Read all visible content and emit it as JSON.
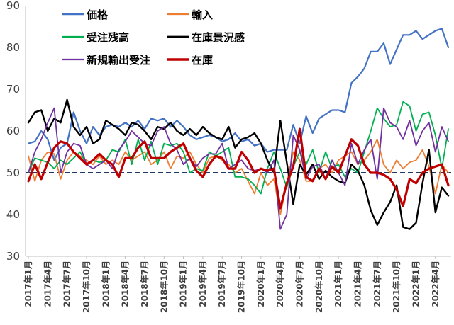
{
  "chart_data": {
    "type": "line",
    "title": "",
    "xlabel": "",
    "ylabel": "",
    "ylim": [
      30,
      90
    ],
    "yticks": [
      30,
      40,
      50,
      60,
      70,
      80,
      90
    ],
    "grid": false,
    "legend_position": "top-left",
    "x_tick_labels": [
      "2017年1月",
      "2017年4月",
      "2017年7月",
      "2017年10月",
      "2018年1月",
      "2018年4月",
      "2018年7月",
      "2018年10月",
      "2019年1月",
      "2019年4月",
      "2019年7月",
      "2019年10月",
      "2020年1月",
      "2020年4月",
      "2020年7月",
      "2020年10月",
      "2021年1月",
      "2021年4月",
      "2021年7月",
      "2021年10月",
      "2022年1月",
      "2022年4月"
    ],
    "reference_line": {
      "value": 50,
      "style": "dashed",
      "color": "#1f3864"
    },
    "x": [
      "2017-01",
      "2017-02",
      "2017-03",
      "2017-04",
      "2017-05",
      "2017-06",
      "2017-07",
      "2017-08",
      "2017-09",
      "2017-10",
      "2017-11",
      "2017-12",
      "2018-01",
      "2018-02",
      "2018-03",
      "2018-04",
      "2018-05",
      "2018-06",
      "2018-07",
      "2018-08",
      "2018-09",
      "2018-10",
      "2018-11",
      "2018-12",
      "2019-01",
      "2019-02",
      "2019-03",
      "2019-04",
      "2019-05",
      "2019-06",
      "2019-07",
      "2019-08",
      "2019-09",
      "2019-10",
      "2019-11",
      "2019-12",
      "2020-01",
      "2020-02",
      "2020-03",
      "2020-04",
      "2020-05",
      "2020-06",
      "2020-07",
      "2020-08",
      "2020-09",
      "2020-10",
      "2020-11",
      "2020-12",
      "2021-01",
      "2021-02",
      "2021-03",
      "2021-04",
      "2021-05",
      "2021-06",
      "2021-07",
      "2021-08",
      "2021-09",
      "2021-10",
      "2021-11",
      "2021-12",
      "2022-01",
      "2022-02",
      "2022-03",
      "2022-04",
      "2022-05",
      "2022-06"
    ],
    "series": [
      {
        "name": "価格",
        "color": "#4472c4",
        "width": 2.2,
        "values": [
          57,
          57.5,
          60,
          58,
          53,
          56,
          57,
          64.5,
          60,
          57,
          61,
          59,
          61,
          61.5,
          61,
          62,
          61,
          62.5,
          60.5,
          63,
          62.5,
          63,
          61,
          62.5,
          61,
          59,
          58,
          58.5,
          59,
          58.5,
          57.5,
          58,
          59.5,
          57.5,
          58,
          56.5,
          57,
          55,
          55.5,
          55.5,
          55.5,
          61.5,
          57,
          63.5,
          59.5,
          63,
          64,
          65,
          65,
          64.5,
          71.5,
          73,
          75,
          79,
          79,
          81,
          76,
          79.5,
          83,
          83,
          84,
          82,
          83,
          84,
          84.5,
          80
        ]
      },
      {
        "name": "輸入",
        "color": "#ed7d31",
        "width": 1.8,
        "values": [
          54,
          48,
          53,
          55,
          54.5,
          48.5,
          53,
          55,
          54,
          53,
          52,
          54,
          52,
          53,
          52,
          55,
          53,
          54,
          55,
          52,
          53,
          55,
          51,
          54,
          53.5,
          55,
          52,
          50,
          53.5,
          54,
          53,
          52,
          50,
          51,
          48,
          45,
          50,
          47,
          48.5,
          40,
          47.5,
          55,
          53,
          48,
          48,
          51,
          52,
          50,
          53,
          54,
          55,
          52,
          53,
          55,
          58,
          52,
          50,
          53,
          51,
          52.5,
          53,
          55.5,
          51.5,
          45,
          52,
          50
        ]
      },
      {
        "name": "受注残高",
        "color": "#00b050",
        "width": 1.8,
        "values": [
          50,
          53.5,
          53,
          52.5,
          51,
          53,
          52,
          53.5,
          55,
          52,
          53,
          52.5,
          53,
          55.5,
          55,
          58,
          52,
          58,
          53,
          57.5,
          52,
          57,
          56.5,
          57,
          55,
          50,
          51,
          50.5,
          55,
          54,
          55,
          56,
          49,
          49,
          48.5,
          47,
          45,
          51,
          55,
          51,
          46.5,
          51.5,
          55,
          52,
          55.5,
          50,
          55,
          51,
          52,
          49,
          51,
          50,
          55,
          60,
          65.5,
          63,
          61,
          61.5,
          67,
          66,
          60,
          64,
          64.5,
          59,
          51,
          60.5
        ]
      },
      {
        "name": "在庫景況感",
        "color": "#000000",
        "width": 2.4,
        "values": [
          62,
          64.5,
          65,
          60,
          63,
          62,
          67.5,
          61,
          59,
          61,
          57,
          58,
          62.5,
          61.5,
          60.5,
          59,
          62,
          61.5,
          60,
          58,
          61,
          60.5,
          62,
          60,
          59,
          60.5,
          59,
          61,
          59.5,
          58.5,
          58,
          61,
          56,
          58,
          58.5,
          59.5,
          57,
          53,
          50,
          62.5,
          52.5,
          42.5,
          52,
          49.5,
          52,
          48.5,
          50.5,
          49,
          48,
          47.5,
          52,
          50.5,
          47,
          41,
          37.5,
          40.5,
          43,
          47,
          37,
          36.5,
          38,
          47.5,
          55.5,
          40.5,
          46.5,
          44.5
        ]
      },
      {
        "name": "新規輸出受注",
        "color": "#7030a0",
        "width": 1.8,
        "values": [
          50,
          55,
          58,
          62,
          65.5,
          50,
          55,
          57,
          56.5,
          52,
          51,
          52,
          53,
          51,
          55.5,
          57.5,
          60,
          58.5,
          57,
          56.5,
          60,
          61,
          57,
          55.5,
          52,
          53.5,
          51.5,
          53.5,
          54.5,
          54.5,
          57,
          51,
          52,
          53,
          51,
          50.5,
          51,
          50,
          53,
          36.5,
          40,
          59,
          55.5,
          48.5,
          51.5,
          52,
          48.5,
          53,
          50,
          47,
          57,
          52,
          55.5,
          58,
          48.5,
          65.5,
          62,
          61,
          58,
          62.5,
          56.5,
          60,
          62,
          55,
          61,
          57.5
        ]
      },
      {
        "name": "在庫",
        "color": "#c00000",
        "width": 3.2,
        "values": [
          48,
          52,
          48.5,
          52.5,
          56,
          57.5,
          57,
          55,
          53.5,
          52,
          53,
          54.5,
          53,
          52,
          49,
          53.5,
          53.5,
          56,
          57.5,
          53.5,
          53.5,
          53.5,
          55,
          56,
          57,
          53.5,
          50.5,
          49,
          52,
          54,
          53.5,
          51,
          51,
          55,
          53,
          50,
          51,
          50.5,
          51,
          41.5,
          47.5,
          51.5,
          60.5,
          49,
          48,
          51,
          48.5,
          51.5,
          50,
          54,
          58,
          56.5,
          52,
          50,
          50,
          49.5,
          48.5,
          46,
          42,
          48.5,
          47.5,
          50,
          51,
          51.5,
          52,
          47
        ]
      }
    ]
  }
}
